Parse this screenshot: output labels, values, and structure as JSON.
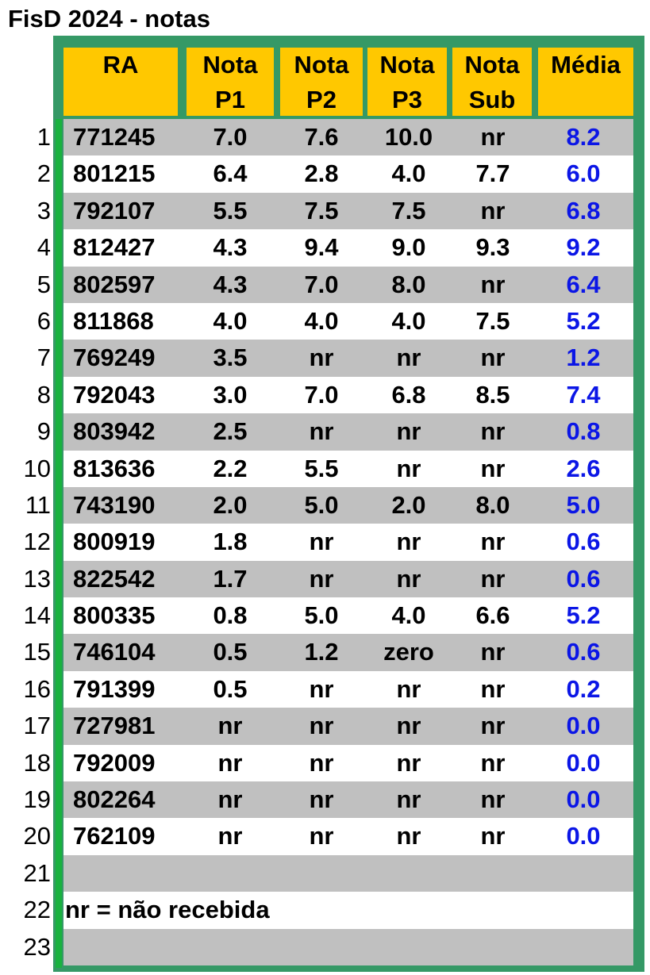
{
  "title": "FisD 2024 - notas",
  "headers": {
    "ra": "RA",
    "p1": [
      "Nota",
      "P1"
    ],
    "p2": [
      "Nota",
      "P2"
    ],
    "p3": [
      "Nota",
      "P3"
    ],
    "sub": [
      "Nota",
      "Sub"
    ],
    "media": "Média"
  },
  "row_numbers": [
    "1",
    "2",
    "3",
    "4",
    "5",
    "6",
    "7",
    "8",
    "9",
    "10",
    "11",
    "12",
    "13",
    "14",
    "15",
    "16",
    "17",
    "18",
    "19",
    "20",
    "21",
    "22",
    "23"
  ],
  "rows": [
    [
      "771245",
      "7.0",
      "7.6",
      "10.0",
      "nr",
      "8.2"
    ],
    [
      "801215",
      "6.4",
      "2.8",
      "4.0",
      "7.7",
      "6.0"
    ],
    [
      "792107",
      "5.5",
      "7.5",
      "7.5",
      "nr",
      "6.8"
    ],
    [
      "812427",
      "4.3",
      "9.4",
      "9.0",
      "9.3",
      "9.2"
    ],
    [
      "802597",
      "4.3",
      "7.0",
      "8.0",
      "nr",
      "6.4"
    ],
    [
      "811868",
      "4.0",
      "4.0",
      "4.0",
      "7.5",
      "5.2"
    ],
    [
      "769249",
      "3.5",
      "nr",
      "nr",
      "nr",
      "1.2"
    ],
    [
      "792043",
      "3.0",
      "7.0",
      "6.8",
      "8.5",
      "7.4"
    ],
    [
      "803942",
      "2.5",
      "nr",
      "nr",
      "nr",
      "0.8"
    ],
    [
      "813636",
      "2.2",
      "5.5",
      "nr",
      "nr",
      "2.6"
    ],
    [
      "743190",
      "2.0",
      "5.0",
      "2.0",
      "8.0",
      "5.0"
    ],
    [
      "800919",
      "1.8",
      "nr",
      "nr",
      "nr",
      "0.6"
    ],
    [
      "822542",
      "1.7",
      "nr",
      "nr",
      "nr",
      "0.6"
    ],
    [
      "800335",
      "0.8",
      "5.0",
      "4.0",
      "6.6",
      "5.2"
    ],
    [
      "746104",
      "0.5",
      "1.2",
      "zero",
      "nr",
      "0.6"
    ],
    [
      "791399",
      "0.5",
      "nr",
      "nr",
      "nr",
      "0.2"
    ],
    [
      "727981",
      "nr",
      "nr",
      "nr",
      "nr",
      "0.0"
    ],
    [
      "792009",
      "nr",
      "nr",
      "nr",
      "nr",
      "0.0"
    ],
    [
      "802264",
      "nr",
      "nr",
      "nr",
      "nr",
      "0.0"
    ],
    [
      "762109",
      "nr",
      "nr",
      "nr",
      "nr",
      "0.0"
    ]
  ],
  "legend_note": "nr = não recebida",
  "colors": {
    "frame": "#359966",
    "header": "#ffc800",
    "row_alt": "#c0c0c0",
    "media_text": "#0b16e6",
    "accent": "#19b23f"
  }
}
